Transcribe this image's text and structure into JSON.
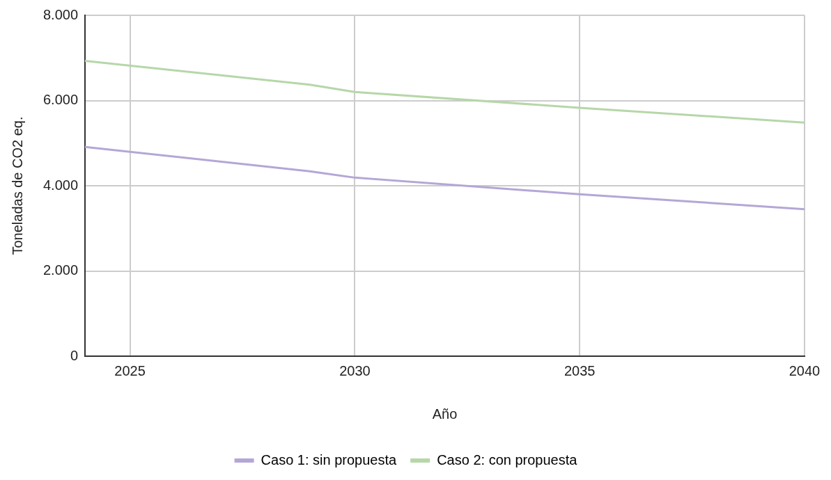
{
  "chart_data": {
    "type": "line",
    "xlabel": "Año",
    "ylabel": "Toneladas de CO2 eq.",
    "xlim": [
      2024,
      2040
    ],
    "xticks": [
      2025,
      2030,
      2035,
      2040
    ],
    "ylim": [
      0,
      8000
    ],
    "yticks": [
      0,
      {
        "value": 2000,
        "label": "2.000"
      },
      {
        "value": 4000,
        "label": "4.000"
      },
      {
        "value": 6000,
        "label": "6.000"
      },
      {
        "value": 8000,
        "label": "8.000"
      }
    ],
    "grid": true,
    "legend": "bottom",
    "marker": "none",
    "line_style": "solid",
    "series": [
      {
        "name": "Caso 1: sin propuesta",
        "color": "#b4a7d6",
        "x": [
          2024,
          2029,
          2030,
          2035,
          2040
        ],
        "values": [
          4910,
          4340,
          4190,
          3800,
          3450
        ]
      },
      {
        "name": "Caso 2: con propuesta",
        "color": "#b6d7a8",
        "x": [
          2024,
          2029,
          2030,
          2035,
          2040
        ],
        "values": [
          6930,
          6370,
          6200,
          5830,
          5480
        ]
      }
    ]
  }
}
